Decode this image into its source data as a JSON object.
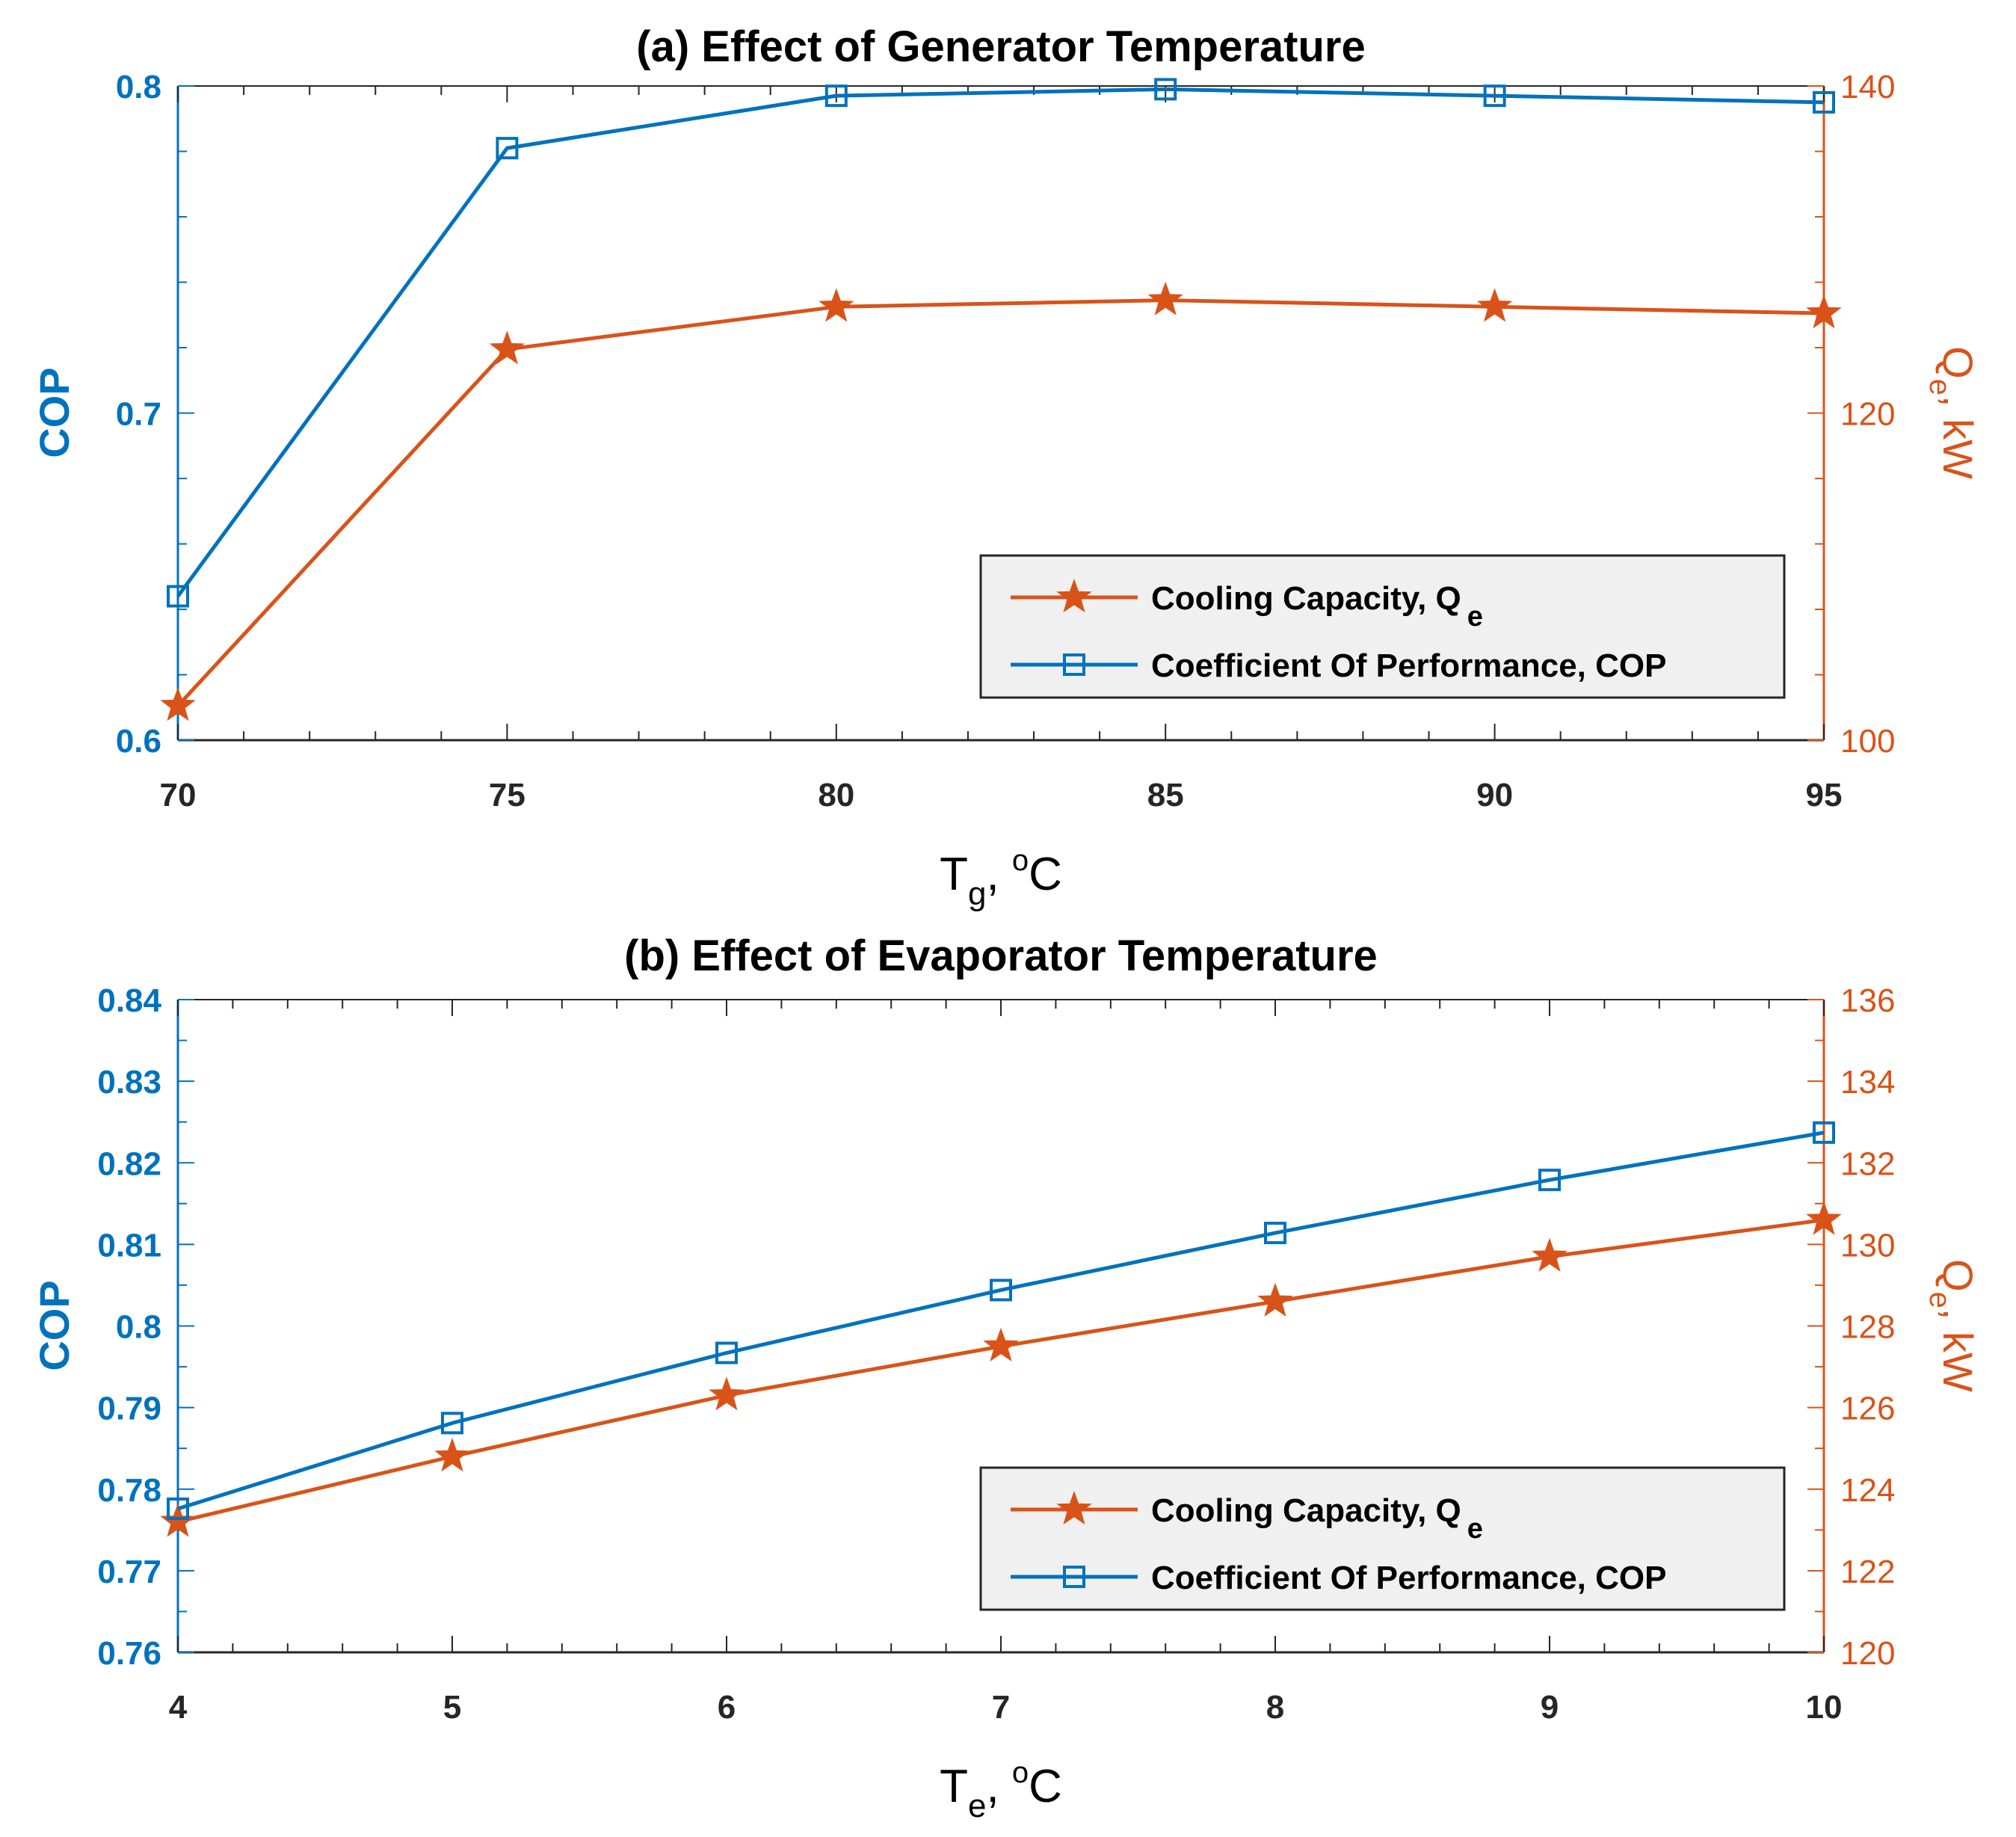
{
  "chart_data": [
    {
      "type": "line",
      "title": "(a) Effect of Generator Temperature",
      "xlabel": {
        "main": "T",
        "sub": "g",
        "rest": ", ",
        "sup": "o",
        "unit": "C"
      },
      "ylabel_left": "COP",
      "ylabel_right": {
        "main": "Q",
        "sub": "e",
        "rest": ", kW"
      },
      "x": [
        70,
        75,
        80,
        85,
        90,
        95
      ],
      "xlim": [
        70,
        95
      ],
      "xticks": [
        "70",
        "75",
        "80",
        "85",
        "90",
        "95"
      ],
      "ylim_left": [
        0.6,
        0.8
      ],
      "yticks_left": [
        "0.6",
        "0.7",
        "0.8"
      ],
      "ylim_right": [
        100,
        140
      ],
      "yticks_right": [
        "100",
        "120",
        "140"
      ],
      "series": [
        {
          "name": "Cooling Capacity, Q",
          "name_sub": "e",
          "axis": "right",
          "marker": "star",
          "color": "#D95319",
          "values": [
            102.1,
            123.9,
            126.5,
            126.9,
            126.5,
            126.1
          ]
        },
        {
          "name": "Coefficient Of Performance, COP",
          "axis": "left",
          "marker": "square",
          "color": "#0072BD",
          "values": [
            0.644,
            0.781,
            0.797,
            0.799,
            0.797,
            0.795
          ]
        }
      ],
      "legend_location": "lower-right"
    },
    {
      "type": "line",
      "title": "(b) Effect of Evaporator Temperature",
      "xlabel": {
        "main": "T",
        "sub": "e",
        "rest": ", ",
        "sup": "o",
        "unit": "C"
      },
      "ylabel_left": "COP",
      "ylabel_right": {
        "main": "Q",
        "sub": "e",
        "rest": ", kW"
      },
      "x": [
        4,
        5,
        6,
        7,
        8,
        9,
        10
      ],
      "xlim": [
        4,
        10
      ],
      "xticks": [
        "4",
        "5",
        "6",
        "7",
        "8",
        "9",
        "10"
      ],
      "ylim_left": [
        0.76,
        0.84
      ],
      "yticks_left": [
        "0.76",
        "0.77",
        "0.78",
        "0.79",
        "0.8",
        "0.81",
        "0.82",
        "0.83",
        "0.84"
      ],
      "ylim_right": [
        120,
        136
      ],
      "yticks_right": [
        "120",
        "122",
        "124",
        "126",
        "128",
        "130",
        "132",
        "134",
        "136"
      ],
      "series": [
        {
          "name": "Cooling Capacity, Q",
          "name_sub": "e",
          "axis": "right",
          "marker": "star",
          "color": "#D95319",
          "values": [
            123.2,
            124.8,
            126.3,
            127.5,
            128.6,
            129.7,
            130.6
          ]
        },
        {
          "name": "Coefficient Of Performance, COP",
          "axis": "left",
          "marker": "square",
          "color": "#0072BD",
          "values": [
            0.7776,
            0.7881,
            0.7967,
            0.8044,
            0.8114,
            0.8179,
            0.8237
          ]
        }
      ],
      "legend_location": "lower-right"
    }
  ]
}
